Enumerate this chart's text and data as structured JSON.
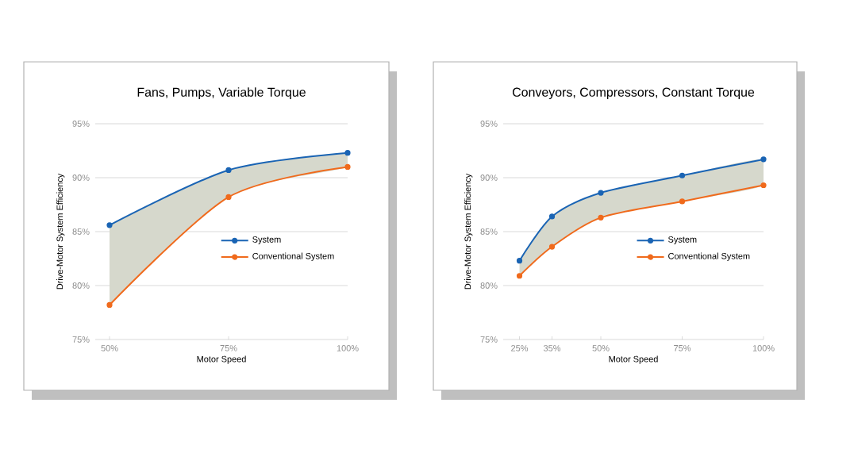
{
  "chart_data": [
    {
      "type": "line",
      "title": "Fans, Pumps, Variable Torque",
      "xlabel": "Motor Speed",
      "ylabel": "Drive-Motor System Efficiency",
      "x": [
        50,
        75,
        100
      ],
      "xlim": [
        47,
        100
      ],
      "xticks": [
        {
          "value": 50,
          "label": "50%"
        },
        {
          "value": 75,
          "label": "75%"
        },
        {
          "value": 100,
          "label": "100%"
        }
      ],
      "ylim": [
        75,
        95
      ],
      "yticks": [
        {
          "value": 75,
          "label": "75%"
        },
        {
          "value": 80,
          "label": "80%"
        },
        {
          "value": 85,
          "label": "85%"
        },
        {
          "value": 90,
          "label": "90%"
        },
        {
          "value": 95,
          "label": "95%"
        }
      ],
      "grid": "y",
      "legend": "right",
      "marker": "circle",
      "line_style": "solid",
      "series": [
        {
          "name": "System",
          "color": "#1a64b4",
          "values": [
            85.6,
            90.7,
            92.3
          ],
          "lower": [
            78.2,
            88.2,
            91.0
          ],
          "upper": [
            85.6,
            90.7,
            92.3
          ]
        },
        {
          "name": "Conventional System",
          "color": "#f06a1c",
          "values": [
            78.2,
            88.2,
            91.0
          ]
        }
      ]
    },
    {
      "type": "line",
      "title": "Conveyors, Compressors, Constant Torque",
      "xlabel": "Motor Speed",
      "ylabel": "Drive-Motor System Efficiency",
      "x": [
        25,
        35,
        50,
        75,
        100
      ],
      "xlim": [
        20,
        100
      ],
      "xticks": [
        {
          "value": 25,
          "label": "25%"
        },
        {
          "value": 35,
          "label": "35%"
        },
        {
          "value": 50,
          "label": "50%"
        },
        {
          "value": 75,
          "label": "75%"
        },
        {
          "value": 100,
          "label": "100%"
        }
      ],
      "ylim": [
        75,
        95
      ],
      "yticks": [
        {
          "value": 75,
          "label": "75%"
        },
        {
          "value": 80,
          "label": "80%"
        },
        {
          "value": 85,
          "label": "85%"
        },
        {
          "value": 90,
          "label": "90%"
        },
        {
          "value": 95,
          "label": "95%"
        }
      ],
      "grid": "y",
      "legend": "right",
      "marker": "circle",
      "line_style": "solid",
      "series": [
        {
          "name": "System",
          "color": "#1a64b4",
          "values": [
            82.3,
            86.4,
            88.6,
            90.2,
            91.7
          ],
          "lower": [
            80.9,
            83.6,
            86.3,
            87.8,
            89.3
          ],
          "upper": [
            82.3,
            86.4,
            88.6,
            90.2,
            91.7
          ]
        },
        {
          "name": "Conventional System",
          "color": "#f06a1c",
          "values": [
            80.9,
            83.6,
            86.3,
            87.8,
            89.3
          ]
        }
      ]
    }
  ]
}
